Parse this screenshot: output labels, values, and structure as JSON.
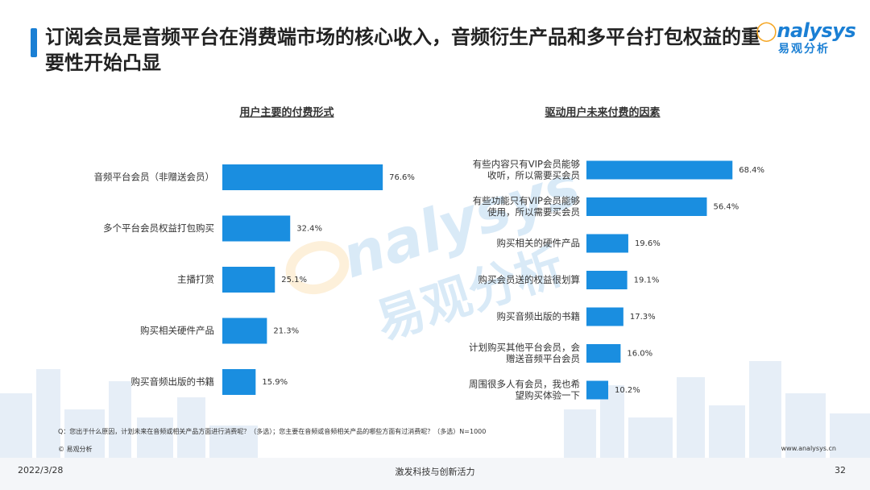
{
  "header": {
    "title": "订阅会员是音频平台在消费端市场的核心收入，音频衍生产品和多平台打包权益的重要性开始凸显",
    "logo_word": "nalysys",
    "logo_cn": "易观分析"
  },
  "watermark": {
    "word": "nalysys",
    "cn": "易观分析"
  },
  "colors": {
    "bar": "#1a8ee0",
    "accent": "#1a7fd4",
    "logo_o": "#f5a623"
  },
  "chart_data": [
    {
      "type": "bar",
      "orientation": "horizontal",
      "title": "用户主要的付费形式",
      "categories": [
        "音频平台会员（非赠送会员）",
        "多个平台会员权益打包购买",
        "主播打赏",
        "购买相关硬件产品",
        "购买音频出版的书籍"
      ],
      "values": [
        76.6,
        32.4,
        25.1,
        21.3,
        15.9
      ],
      "value_labels": [
        "76.6%",
        "32.4%",
        "25.1%",
        "21.3%",
        "15.9%"
      ],
      "unit": "%"
    },
    {
      "type": "bar",
      "orientation": "horizontal",
      "title": "驱动用户未来付费的因素",
      "categories": [
        [
          "有些内容只有VIP会员能够",
          "收听，所以需要买会员"
        ],
        [
          "有些功能只有VIP会员能够",
          "使用，所以需要买会员"
        ],
        [
          "购买相关的硬件产品"
        ],
        [
          "购买会员送的权益很划算"
        ],
        [
          "购买音频出版的书籍"
        ],
        [
          "计划购买其他平台会员，会",
          "赠送音频平台会员"
        ],
        [
          "周围很多人有会员，我也希",
          "望购买体验一下"
        ]
      ],
      "values": [
        68.4,
        56.4,
        19.6,
        19.1,
        17.3,
        16.0,
        10.2
      ],
      "value_labels": [
        "68.4%",
        "56.4%",
        "19.6%",
        "19.1%",
        "17.3%",
        "16.0%",
        "10.2%"
      ],
      "unit": "%"
    }
  ],
  "footnote": "Q：您出于什么原因，计划未来在音频或相关产品方面进行消费呢？（多选）；您主要在音频或音频相关产品的哪些方面有过消费呢？（多选）N=1000",
  "copyright": "© 易观分析",
  "website": "www.analysys.cn",
  "footer": {
    "date": "2022/3/28",
    "slogan": "激发科技与创新活力",
    "page": "32"
  }
}
